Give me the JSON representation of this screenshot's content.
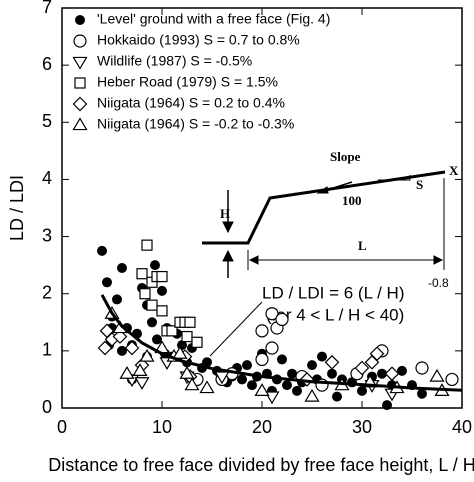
{
  "chart_data": {
    "type": "scatter",
    "xlabel": "Distance to free face divided by free face height, L / H",
    "ylabel": "LD / LDI",
    "xlim": [
      0,
      40
    ],
    "ylim": [
      0,
      7
    ],
    "xticks": [
      0,
      10,
      20,
      30,
      40
    ],
    "yticks": [
      0,
      1,
      2,
      3,
      4,
      5,
      6,
      7
    ],
    "grid": false,
    "legend": "top-left",
    "series": [
      {
        "name": "'Level' ground with a free face (Fig. 4)",
        "marker": "circle-filled",
        "color": "#000000",
        "x": [
          4,
          4.5,
          5,
          5.5,
          6,
          6.5,
          7,
          7.5,
          8,
          8.5,
          9,
          9.3,
          9.5,
          10,
          10.3,
          10.5,
          11,
          11.5,
          12,
          12.5,
          13,
          14,
          14.5,
          15.5,
          16,
          16.5,
          17,
          17.5,
          18,
          18.5,
          19,
          19.5,
          20,
          20.5,
          21,
          21.5,
          22,
          22.5,
          23,
          23.5,
          24,
          25,
          25.5,
          26,
          27,
          27.5,
          28,
          29,
          30,
          31,
          32,
          32.5,
          33,
          34,
          35,
          36,
          7,
          8.5,
          5,
          6,
          4.7
        ],
        "values": [
          2.75,
          2.2,
          1.6,
          1.9,
          2.45,
          1.4,
          1.1,
          1.3,
          2.1,
          1.8,
          1.5,
          2.5,
          1.2,
          2.05,
          0.95,
          1.4,
          0.9,
          1.3,
          1.1,
          0.8,
          1.05,
          0.7,
          0.8,
          0.65,
          0.6,
          0.45,
          0.55,
          0.7,
          0.5,
          0.75,
          0.4,
          0.55,
          0.95,
          0.6,
          0.3,
          0.5,
          0.85,
          0.4,
          0.6,
          0.3,
          0.45,
          0.75,
          0.5,
          0.9,
          0.6,
          0.2,
          0.5,
          0.45,
          0.3,
          0.55,
          0.6,
          0.05,
          0.4,
          0.65,
          0.4,
          0.25,
          0.5,
          0.9,
          1.4,
          1.0,
          1.1
        ]
      },
      {
        "name": "Hokkaido (1993) S = 0.7 to 0.8%",
        "marker": "circle-open",
        "color": "#000000",
        "x": [
          20,
          21,
          21.5,
          22,
          21,
          20,
          17,
          24,
          29.5,
          26,
          36,
          39,
          32,
          13.5,
          16
        ],
        "values": [
          1.35,
          1.65,
          1.4,
          1.55,
          1.05,
          0.85,
          0.6,
          0.55,
          0.6,
          0.4,
          0.7,
          0.5,
          1.0,
          0.5,
          0.5
        ]
      },
      {
        "name": "Wildlife (1987) S = -0.5%",
        "marker": "triangle-down",
        "color": "#000000",
        "x": [
          7,
          8,
          10.5,
          12.5,
          16,
          31,
          33,
          21
        ],
        "values": [
          0.5,
          0.45,
          0.8,
          0.55,
          0.55,
          0.4,
          0.25,
          0.2
        ]
      },
      {
        "name": "Heber Road (1979) S = 1.5%",
        "marker": "square",
        "color": "#000000",
        "x": [
          8.5,
          8,
          9,
          9.5,
          10,
          8.3,
          9,
          10,
          10.5,
          11,
          11.8,
          12.3,
          12.8,
          12.5,
          13.5
        ],
        "values": [
          2.85,
          2.35,
          2.2,
          2.3,
          2.3,
          2.0,
          1.8,
          1.7,
          1.35,
          1.35,
          1.5,
          1.5,
          1.5,
          1.25,
          1.15
        ]
      },
      {
        "name": "Niigata (1964) S = 0.2 to 0.4%",
        "marker": "diamond",
        "color": "#000000",
        "x": [
          4.5,
          5,
          4.3,
          5.8,
          7,
          8,
          12.3,
          12.8,
          27,
          30,
          31,
          31.5,
          33,
          24.5
        ],
        "values": [
          1.35,
          1.2,
          1.05,
          1.25,
          1.05,
          0.75,
          0.9,
          0.55,
          0.8,
          0.7,
          0.8,
          0.95,
          0.6,
          0.5
        ]
      },
      {
        "name": "Niigata (1964) S = -0.2 to -0.3%",
        "marker": "triangle-up",
        "color": "#000000",
        "x": [
          5,
          5.8,
          6.5,
          7.8,
          8.5,
          10,
          11.2,
          11.8,
          12.5,
          13,
          14.5,
          20,
          28,
          30.8,
          33.5,
          37.5,
          38,
          25
        ],
        "values": [
          1.65,
          1.4,
          0.6,
          0.65,
          0.9,
          1.05,
          0.9,
          0.95,
          0.6,
          0.4,
          0.35,
          0.3,
          0.4,
          0.45,
          0.35,
          0.55,
          0.3,
          0.2
        ]
      },
      {
        "marker": "line",
        "color": "#000000",
        "x": [
          4,
          5,
          6,
          8,
          10,
          12,
          15,
          20,
          25,
          30,
          35,
          40
        ],
        "values": [
          1.98,
          1.66,
          1.43,
          1.14,
          0.95,
          0.82,
          0.69,
          0.55,
          0.46,
          0.41,
          0.35,
          0.31
        ]
      }
    ],
    "annotations": [
      "LD / LDI = 6 (L / H)",
      "-0.8",
      "(for 4 < L / H < 40)"
    ],
    "diagram_labels": [
      "Slope",
      "S",
      "100",
      "X",
      "H",
      "L"
    ]
  }
}
